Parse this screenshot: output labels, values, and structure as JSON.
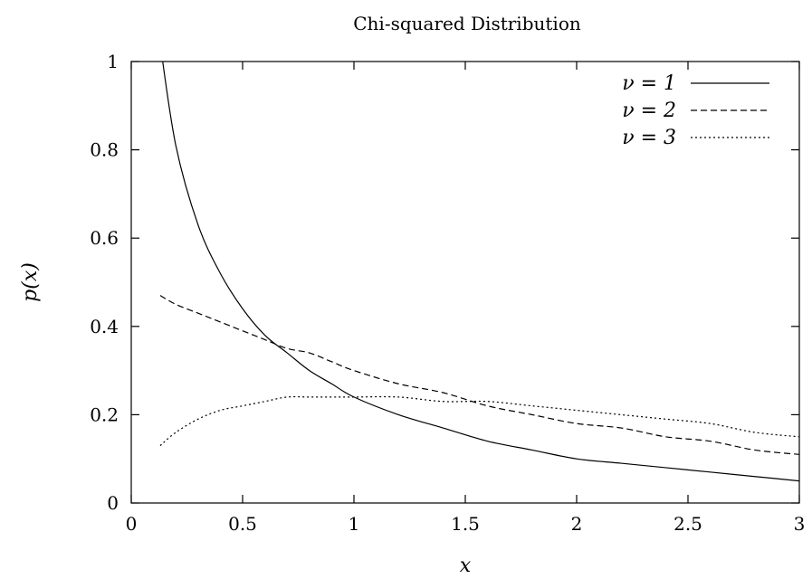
{
  "chart_data": {
    "type": "line",
    "title": "Chi-squared Distribution",
    "xlabel": "x",
    "ylabel": "p(x)",
    "xlim": [
      0,
      3
    ],
    "ylim": [
      0,
      1
    ],
    "x_ticks": [
      0,
      0.5,
      1,
      1.5,
      2,
      2.5,
      3
    ],
    "x_tick_labels": [
      "0",
      "0.5",
      "1",
      "1.5",
      "2",
      "2.5",
      "3"
    ],
    "y_ticks": [
      0,
      0.2,
      0.4,
      0.6,
      0.8,
      1
    ],
    "y_tick_labels": [
      "0",
      "0.2",
      "0.4",
      "0.6",
      "0.8",
      "1"
    ],
    "grid": false,
    "legend_position": "top-right",
    "x": [
      0.13,
      0.2,
      0.3,
      0.4,
      0.5,
      0.6,
      0.7,
      0.8,
      0.9,
      1.0,
      1.2,
      1.4,
      1.6,
      1.8,
      2.0,
      2.2,
      2.4,
      2.6,
      2.8,
      3.0
    ],
    "series": [
      {
        "name": "ν = 1",
        "dash": "solid",
        "values": [
          1.04,
          0.81,
          0.63,
          0.52,
          0.44,
          0.38,
          0.34,
          0.3,
          0.27,
          0.24,
          0.2,
          0.17,
          0.14,
          0.12,
          0.1,
          0.09,
          0.08,
          0.07,
          0.06,
          0.05
        ]
      },
      {
        "name": "ν = 2",
        "dash": "dashed",
        "values": [
          0.47,
          0.45,
          0.43,
          0.41,
          0.39,
          0.37,
          0.35,
          0.34,
          0.32,
          0.3,
          0.27,
          0.25,
          0.22,
          0.2,
          0.18,
          0.17,
          0.15,
          0.14,
          0.12,
          0.11
        ]
      },
      {
        "name": "ν = 3",
        "dash": "dotted",
        "values": [
          0.13,
          0.16,
          0.19,
          0.21,
          0.22,
          0.23,
          0.24,
          0.24,
          0.24,
          0.24,
          0.24,
          0.23,
          0.23,
          0.22,
          0.21,
          0.2,
          0.19,
          0.18,
          0.16,
          0.15
        ]
      }
    ]
  }
}
